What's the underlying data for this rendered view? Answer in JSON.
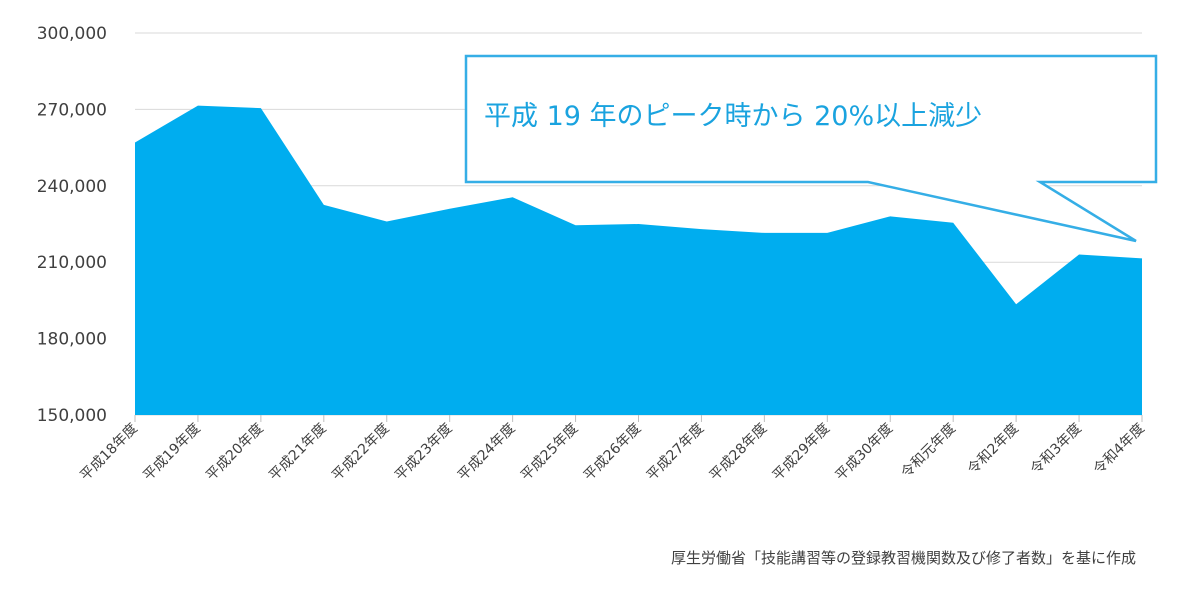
{
  "chart_data": {
    "type": "area",
    "categories": [
      "平成18年度",
      "平成19年度",
      "平成20年度",
      "平成21年度",
      "平成22年度",
      "平成23年度",
      "平成24年度",
      "平成25年度",
      "平成26年度",
      "平成27年度",
      "平成28年度",
      "平成29年度",
      "平成30年度",
      "令和元年度",
      "令和2年度",
      "令和3年度",
      "令和4年度"
    ],
    "series": [
      {
        "values": [
          257000,
          271500,
          270500,
          232500,
          226000,
          231000,
          235500,
          224500,
          225000,
          223000,
          221500,
          221500,
          228000,
          225500,
          193500,
          213000,
          211500
        ]
      }
    ],
    "ylim": [
      150000,
      300000
    ],
    "yticks": [
      150000,
      180000,
      210000,
      240000,
      270000,
      300000
    ],
    "ytick_labels": [
      "150,000",
      "180,000",
      "210,000",
      "240,000",
      "270,000",
      "300,000"
    ],
    "grid": true,
    "annotation": "平成 19 年のピーク時から 20%以上減少",
    "source": "厚生労働省「技能講習等の登録教習機関数及び修了者数」を基に作成",
    "colors": {
      "area": "#00adef",
      "callout_border": "#35aee6",
      "callout_text": "#1aa3df",
      "grid": "#d9d9d9"
    }
  }
}
